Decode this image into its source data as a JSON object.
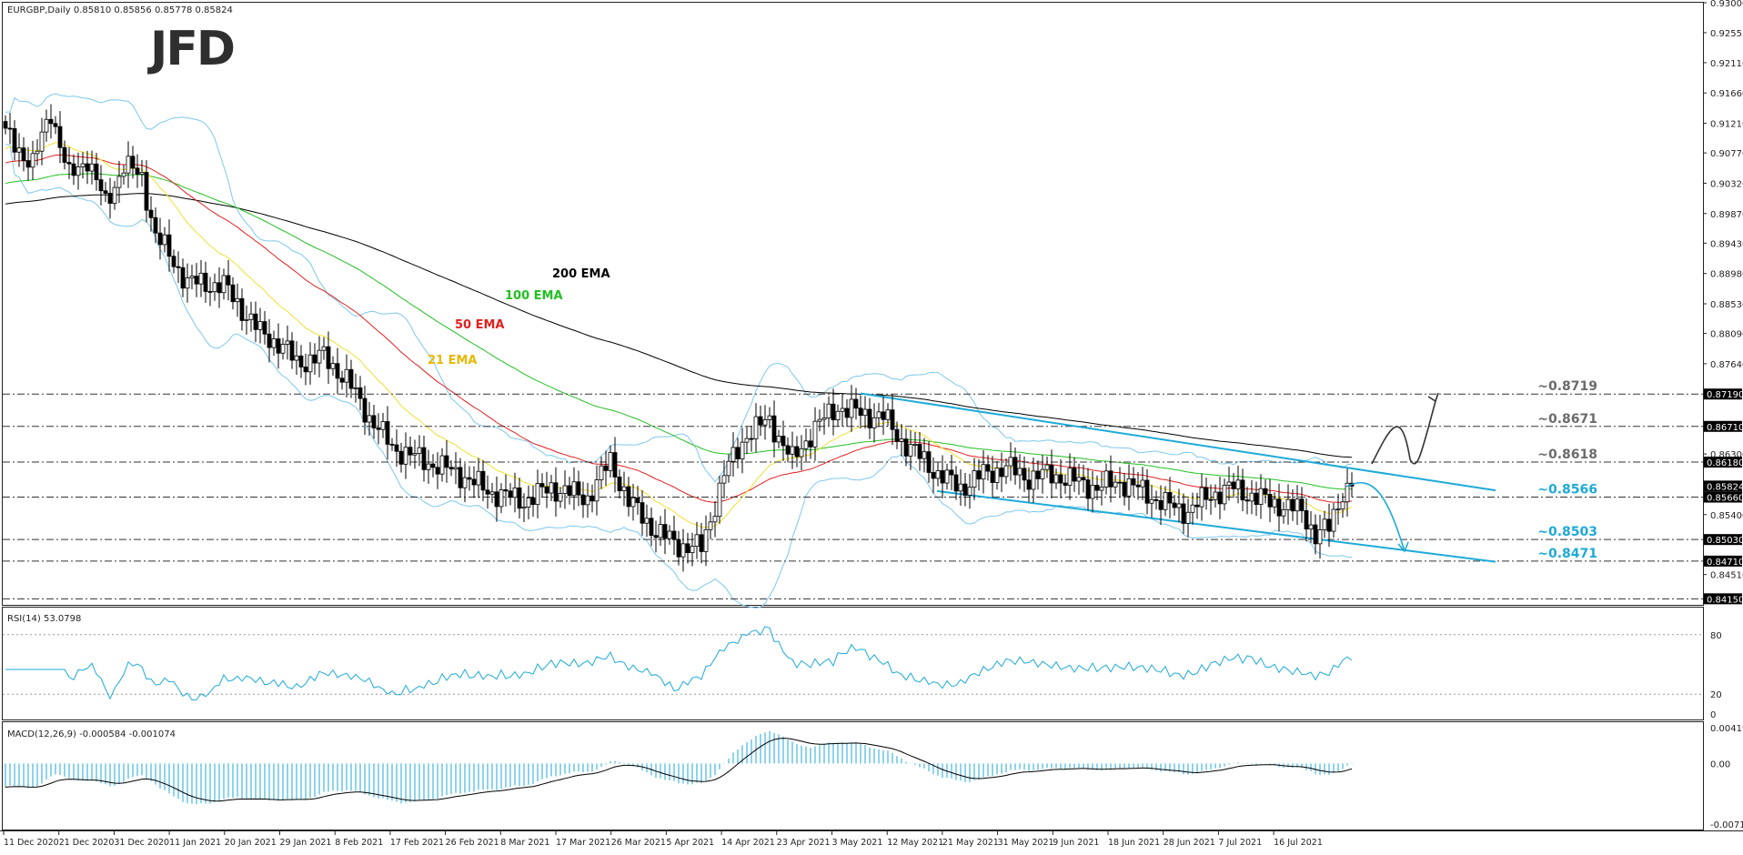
{
  "header": {
    "symbol_info": "EURGBP,Daily  0.85810 0.85856 0.85778 0.85824",
    "logo": "JFD"
  },
  "chart_data": {
    "type": "candlestick",
    "timeframe": "Daily",
    "ylim": [
      0.8406,
      0.93
    ],
    "y_ticks": [
      "0.93000",
      "0.92555",
      "0.92110",
      "0.91660",
      "0.91210",
      "0.90770",
      "0.90320",
      "0.89870",
      "0.89430",
      "0.88980",
      "0.88530",
      "0.88090",
      "0.87640",
      "0.86300",
      "0.85400",
      "0.84510"
    ],
    "x_labels": [
      "11 Dec 2020",
      "21 Dec 2020",
      "31 Dec 2020",
      "11 Jan 2021",
      "20 Jan 2021",
      "29 Jan 2021",
      "8 Feb 2021",
      "17 Feb 2021",
      "26 Feb 2021",
      "8 Mar 2021",
      "17 Mar 2021",
      "26 Mar 2021",
      "5 Apr 2021",
      "14 Apr 2021",
      "23 Apr 2021",
      "3 May 2021",
      "12 May 2021",
      "21 May 2021",
      "31 May 2021",
      "9 Jun 2021",
      "18 Jun 2021",
      "28 Jun 2021",
      "7 Jul 2021",
      "16 Jul 2021"
    ],
    "current_price": 0.85824,
    "levels": [
      {
        "label": "~0.8719",
        "value": 0.8719,
        "axis_label": "0.87190",
        "color": "#6b6b6b"
      },
      {
        "label": "~0.8671",
        "value": 0.8671,
        "axis_label": "0.86710",
        "color": "#6b6b6b"
      },
      {
        "label": "~0.8618",
        "value": 0.8618,
        "axis_label": "0.86180",
        "color": "#6b6b6b"
      },
      {
        "label": "~0.8566",
        "value": 0.8566,
        "axis_label": "0.85660",
        "color": "#1eaad8"
      },
      {
        "label": "~0.8503",
        "value": 0.8503,
        "axis_label": "0.85030",
        "color": "#1eaad8"
      },
      {
        "label": "~0.8471",
        "value": 0.8471,
        "axis_label": "0.84710",
        "color": "#1eaad8"
      },
      {
        "value": 0.8415,
        "axis_label": "0.84150"
      }
    ],
    "price_tag": "0.85824",
    "ema_labels": [
      {
        "text": "200 EMA",
        "color": "#000000"
      },
      {
        "text": "100 EMA",
        "color": "#22c022"
      },
      {
        "text": "50 EMA",
        "color": "#e02020"
      },
      {
        "text": "21 EMA",
        "color": "#e8b800"
      }
    ],
    "colors": {
      "ema200": "#000000",
      "ema100": "#22c022",
      "ema50": "#e02020",
      "ema21": "#f0e030",
      "bollinger": "#7ec8ec",
      "channel": "#1eaad8",
      "candle_up": "#ffffff",
      "candle_down": "#000000"
    },
    "rsi": {
      "label": "RSI(14) 53.0798",
      "levels": [
        "80",
        "20",
        "0"
      ],
      "ylim": [
        0,
        100
      ],
      "color": "#1eaad8"
    },
    "macd": {
      "label": "MACD(12,26,9) -0.000584 -0.001074",
      "ticks": [
        "0.004193",
        "0.00",
        "-0.007103"
      ],
      "ylim": [
        -0.007103,
        0.004193
      ],
      "hist_color": "#1eaad8",
      "signal_color": "#000000"
    }
  }
}
